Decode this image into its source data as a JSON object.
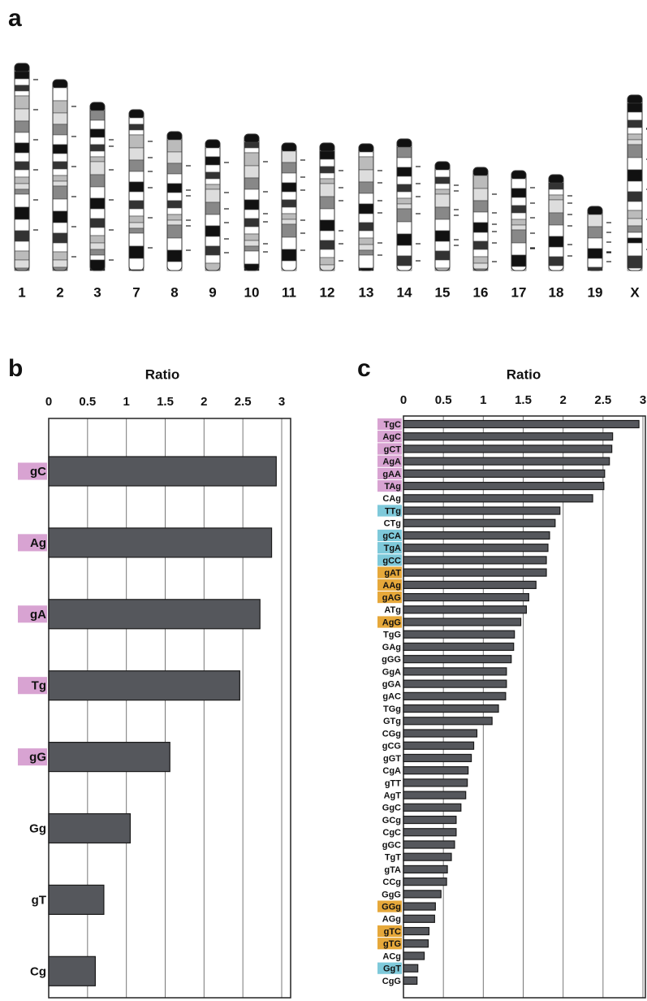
{
  "ideogram": {
    "panel": "a",
    "chromosomes": [
      "1",
      "2",
      "3",
      "7",
      "8",
      "9",
      "10",
      "11",
      "12",
      "13",
      "14",
      "15",
      "16",
      "17",
      "18",
      "19",
      "X"
    ]
  },
  "chart_data": [
    {
      "type": "hbar",
      "panel": "b",
      "title": "Ratio",
      "categories": [
        "gC",
        "Ag",
        "gA",
        "Tg",
        "gG",
        "Gg",
        "gT",
        "Cg"
      ],
      "values": [
        2.93,
        2.87,
        2.72,
        2.46,
        1.56,
        1.05,
        0.71,
        0.6
      ],
      "label_colors": [
        "#d8a3d2",
        "#d8a3d2",
        "#d8a3d2",
        "#d8a3d2",
        "#d8a3d2",
        null,
        null,
        null
      ],
      "color": "#55575c",
      "xlim": [
        0,
        3
      ],
      "xticks": [
        0,
        0.5,
        1,
        1.5,
        2,
        2.5,
        3
      ],
      "grid": true
    },
    {
      "type": "hbar",
      "panel": "c",
      "title": "Ratio",
      "categories": [
        "TgC",
        "AgC",
        "gCT",
        "AgA",
        "gAA",
        "TAg",
        "CAg",
        "TTg",
        "CTg",
        "gCA",
        "TgA",
        "gCC",
        "gAT",
        "AAg",
        "gAG",
        "ATg",
        "AgG",
        "TgG",
        "GAg",
        "gGG",
        "GgA",
        "gGA",
        "gAC",
        "TGg",
        "GTg",
        "CGg",
        "gCG",
        "gGT",
        "CgA",
        "gTT",
        "AgT",
        "GgC",
        "GCg",
        "CgC",
        "gGC",
        "TgT",
        "gTA",
        "CCg",
        "GgG",
        "GGg",
        "AGg",
        "gTC",
        "gTG",
        "ACg",
        "GgT",
        "CgG"
      ],
      "values": [
        2.95,
        2.62,
        2.61,
        2.58,
        2.52,
        2.51,
        2.37,
        1.96,
        1.9,
        1.83,
        1.81,
        1.79,
        1.79,
        1.66,
        1.57,
        1.54,
        1.47,
        1.39,
        1.38,
        1.35,
        1.29,
        1.29,
        1.28,
        1.19,
        1.11,
        0.92,
        0.88,
        0.85,
        0.81,
        0.8,
        0.78,
        0.72,
        0.66,
        0.66,
        0.64,
        0.6,
        0.55,
        0.54,
        0.47,
        0.4,
        0.39,
        0.32,
        0.31,
        0.26,
        0.18,
        0.17
      ],
      "label_colors": [
        "#d8a3d2",
        "#d8a3d2",
        "#d8a3d2",
        "#d8a3d2",
        "#d8a3d2",
        "#d8a3d2",
        null,
        "#7ec9da",
        null,
        "#7ec9da",
        "#7ec9da",
        "#7ec9da",
        "#e6a83a",
        "#e6a83a",
        "#e6a83a",
        null,
        "#e6a83a",
        null,
        null,
        null,
        null,
        null,
        null,
        null,
        null,
        null,
        null,
        null,
        null,
        null,
        null,
        null,
        null,
        null,
        null,
        null,
        null,
        null,
        null,
        "#e6a83a",
        null,
        "#e6a83a",
        "#e6a83a",
        null,
        "#7ec9da",
        null
      ],
      "color": "#55575c",
      "xlim": [
        0,
        3
      ],
      "xticks": [
        0,
        0.5,
        1,
        1.5,
        2,
        2.5,
        3
      ],
      "grid": true
    }
  ]
}
